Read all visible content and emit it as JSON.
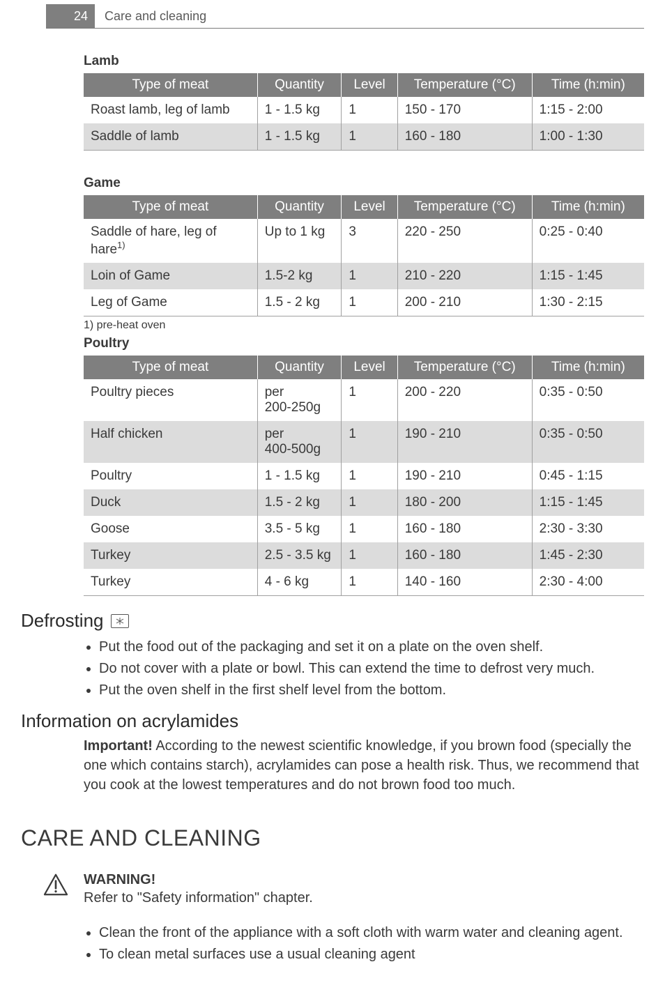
{
  "header": {
    "page_number": "24",
    "section": "Care and cleaning"
  },
  "tables": {
    "columns": [
      "Type of meat",
      "Quantity",
      "Level",
      "Temperature (°C)",
      "Time (h:min)"
    ],
    "lamb": {
      "label": "Lamb",
      "rows": [
        [
          "Roast lamb, leg of lamb",
          "1 - 1.5 kg",
          "1",
          "150 - 170",
          "1:15 - 2:00"
        ],
        [
          "Saddle of lamb",
          "1 - 1.5 kg",
          "1",
          "160 - 180",
          "1:00 - 1:30"
        ]
      ]
    },
    "game": {
      "label": "Game",
      "rows": [
        [
          "Saddle of hare, leg of hare",
          "Up to 1 kg",
          "3",
          "220 - 250",
          "0:25 - 0:40"
        ],
        [
          "Loin of Game",
          "1.5-2 kg",
          "1",
          "210 - 220",
          "1:15 - 1:45"
        ],
        [
          "Leg of Game",
          "1.5 - 2 kg",
          "1",
          "200 - 210",
          "1:30 - 2:15"
        ]
      ],
      "footnote_marker": "1)",
      "footnote": "1) pre-heat oven"
    },
    "poultry": {
      "label": "Poultry",
      "rows": [
        [
          "Poultry pieces",
          "per 200-250g",
          "1",
          "200 - 220",
          "0:35 - 0:50"
        ],
        [
          "Half chicken",
          "per 400-500g",
          "1",
          "190 - 210",
          "0:35 - 0:50"
        ],
        [
          "Poultry",
          "1 - 1.5 kg",
          "1",
          "190 - 210",
          "0:45 - 1:15"
        ],
        [
          "Duck",
          "1.5 - 2 kg",
          "1",
          "180 - 200",
          "1:15 - 1:45"
        ],
        [
          "Goose",
          "3.5 - 5 kg",
          "1",
          "160 - 180",
          "2:30 - 3:30"
        ],
        [
          "Turkey",
          "2.5 - 3.5 kg",
          "1",
          "160 - 180",
          "1:45 - 2:30"
        ],
        [
          "Turkey",
          "4 - 6 kg",
          "1",
          "140 - 160",
          "2:30 - 4:00"
        ]
      ]
    }
  },
  "defrosting": {
    "heading": "Defrosting",
    "bullets": [
      "Put the food out of the packaging and set it on a plate on the oven shelf.",
      "Do not cover with a plate or bowl. This can extend the time to defrost very much.",
      "Put the oven shelf in the first shelf level from the bottom."
    ]
  },
  "acrylamides": {
    "heading": "Information on acrylamides",
    "important_label": "Important!",
    "text": " According to the newest scientific knowledge, if you brown food (specially the one which contains starch), acrylamides can pose a health risk. Thus, we recommend that you cook at the lowest temperatures and do not brown food too much."
  },
  "care": {
    "heading": "CARE AND CLEANING",
    "warning_label": "WARNING!",
    "warning_text": "Refer to \"Safety information\" chapter.",
    "bullets": [
      "Clean the front of the appliance with a soft cloth with warm water and cleaning agent.",
      "To clean metal surfaces use a usual cleaning agent"
    ]
  },
  "style": {
    "header_bg": "#7f7f7f",
    "alt_row_bg": "#dcdcdc",
    "text_color": "#3a3a3a"
  }
}
